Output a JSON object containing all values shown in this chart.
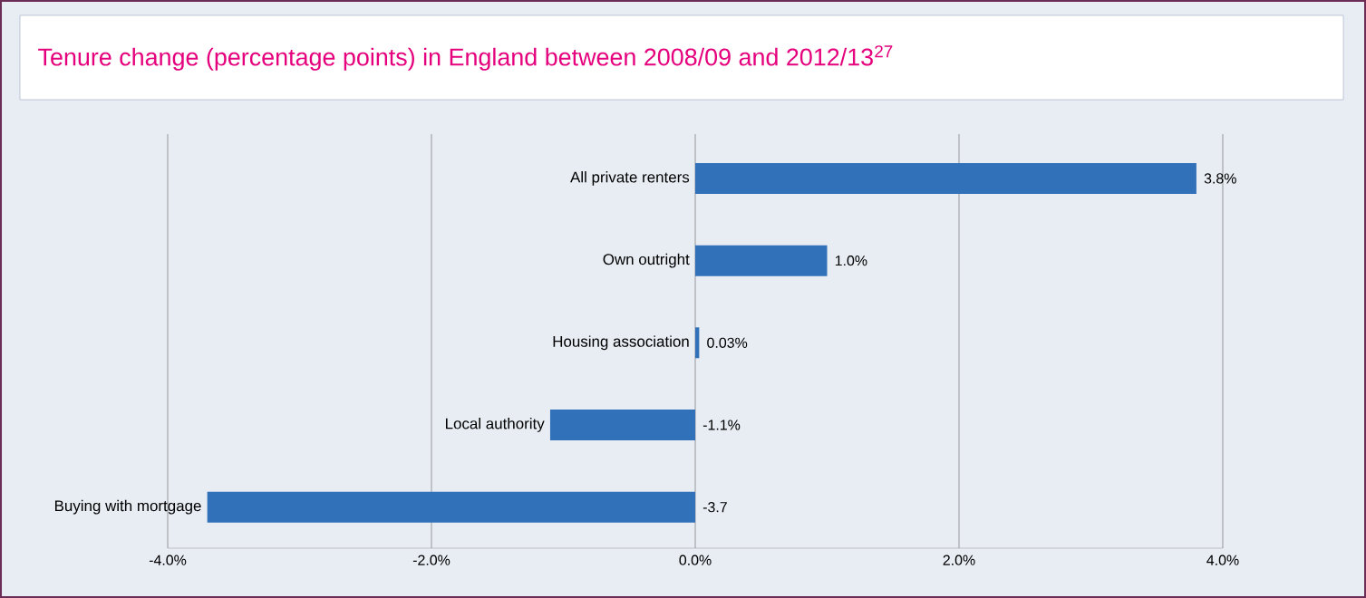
{
  "chart_data": {
    "type": "bar",
    "orientation": "horizontal",
    "title": "Tenure change (percentage points) in England between 2008/09 and 2012/13$^{27}$",
    "categories": [
      "All private renters",
      "Own outright",
      "Housing association",
      "Local authority",
      "Buying with mortgage"
    ],
    "values": [
      3.8,
      1.0,
      0.03,
      -1.1,
      -3.7
    ],
    "value_labels": [
      "3.8%",
      "1.0%",
      "0.03%",
      "-1.1%",
      "-3.7"
    ],
    "color": "#3171b9",
    "xlim": [
      -4,
      4
    ],
    "xticks": [
      {
        "value": -4,
        "label": "-4.0%"
      },
      {
        "value": -2,
        "label": "-2.0%"
      },
      {
        "value": 0,
        "label": "0.0%"
      },
      {
        "value": 2,
        "label": "2.0%"
      },
      {
        "value": 4,
        "label": "4.0%"
      }
    ],
    "grid": "x"
  }
}
